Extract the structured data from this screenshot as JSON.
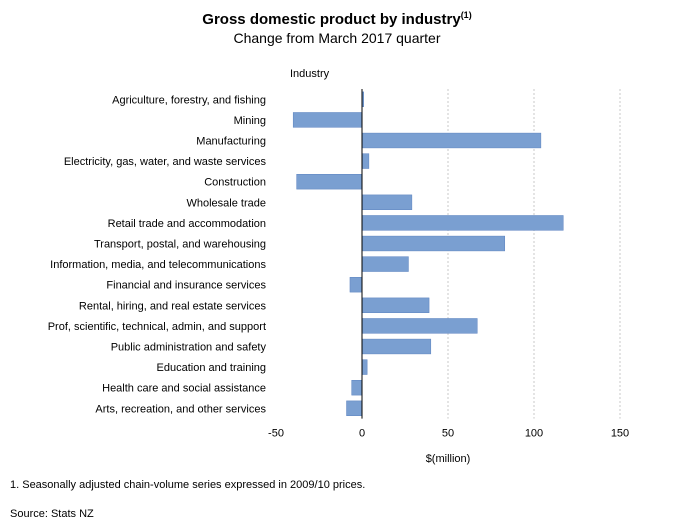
{
  "header": {
    "title": "Gross domestic product by industry",
    "title_sup": "(1)",
    "subtitle": "Change from March 2017 quarter"
  },
  "footer": {
    "footnote": "1. Seasonally adjusted chain-volume series expressed in 2009/10 prices.",
    "source": "Source: Stats NZ"
  },
  "chart_data": {
    "type": "bar",
    "orientation": "horizontal",
    "categories": [
      "Agriculture, forestry, and fishing",
      "Mining",
      "Manufacturing",
      "Electricity, gas, water, and waste services",
      "Construction",
      "Wholesale trade",
      "Retail trade and accommodation",
      "Transport, postal, and warehousing",
      "Information, media, and telecommunications",
      "Financial and insurance services",
      "Rental, hiring, and real estate services",
      "Prof, scientific, technical, admin, and support",
      "Public administration and safety",
      "Education and training",
      "Health care and social assistance",
      "Arts, recreation, and other services"
    ],
    "values": [
      1,
      -40,
      104,
      4,
      -38,
      29,
      117,
      83,
      27,
      -7,
      39,
      67,
      40,
      3,
      -6,
      -9
    ],
    "category_axis_label": "Industry",
    "xlabel": "$(million)",
    "xlim": [
      -50,
      150
    ],
    "xticks": [
      -50,
      0,
      50,
      100,
      150
    ],
    "grid": "vertical",
    "bar_color": "#7a9fd1",
    "bar_stroke": "#5b82bf"
  }
}
